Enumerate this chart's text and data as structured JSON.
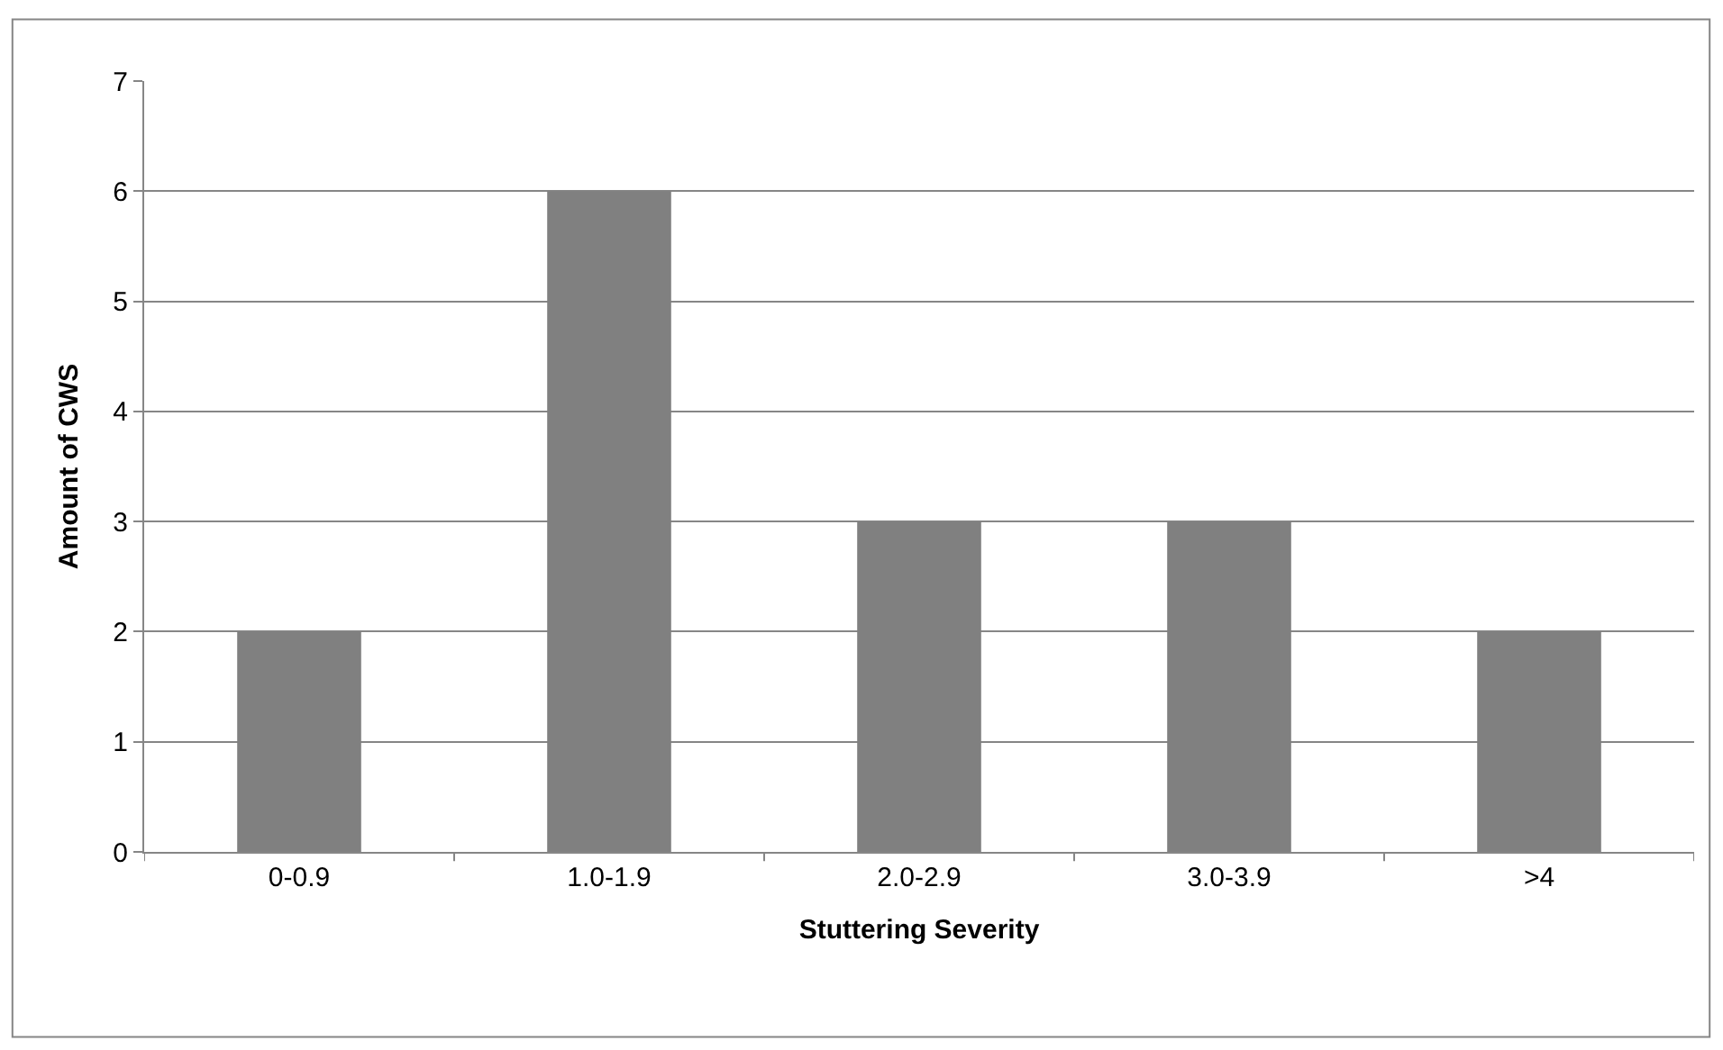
{
  "chart_data": {
    "type": "bar",
    "xlabel": "Stuttering Severity",
    "ylabel": "Amount of CWS",
    "categories": [
      "0-0.9",
      "1.0-1.9",
      "2.0-2.9",
      "3.0-3.9",
      ">4"
    ],
    "values": [
      2,
      6,
      3,
      3,
      2
    ],
    "color": "#808080",
    "ylim": [
      0,
      7
    ],
    "yticks": [
      0,
      1,
      2,
      3,
      4,
      5,
      6,
      7
    ],
    "grid": "y"
  }
}
